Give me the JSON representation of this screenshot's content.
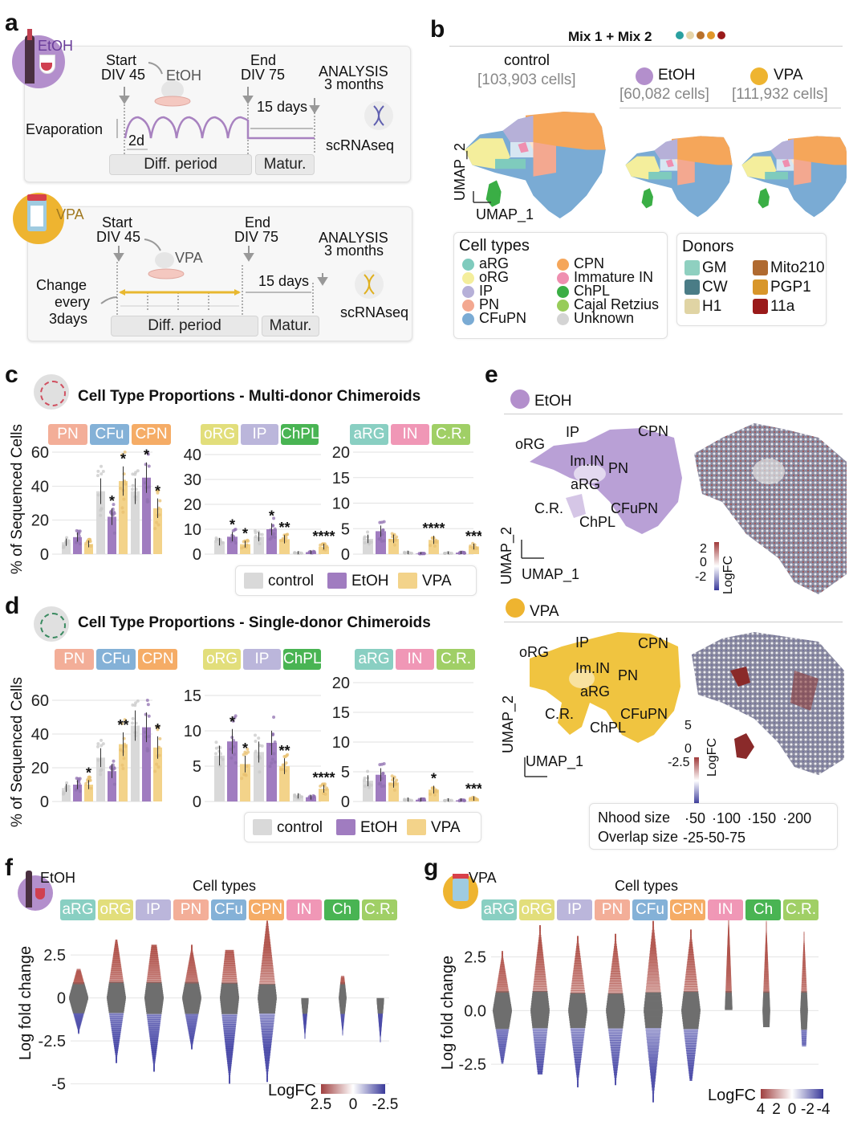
{
  "panels": {
    "a": {
      "label": "a",
      "etoh": {
        "icon_label": "EtOH",
        "start": "Start",
        "start_div": "DIV 45",
        "treatment": "EtOH",
        "end": "End",
        "end_div": "DIV 75",
        "analysis": "ANALYSIS",
        "analysis_time": "3 months",
        "mat_days": "15 days",
        "evaporation": "Evaporation",
        "interval": "2d",
        "seq": "scRNAseq",
        "diff_period": "Diff. period",
        "matur": "Matur.",
        "line_color": "#a882c0"
      },
      "vpa": {
        "icon_label": "VPA",
        "start": "Start",
        "start_div": "DIV 45",
        "treatment": "VPA",
        "end": "End",
        "end_div": "DIV 75",
        "analysis": "ANALYSIS",
        "analysis_time": "3 months",
        "mat_days": "15 days",
        "change1": "Change",
        "change2": "every",
        "change3": "3days",
        "seq": "scRNAseq",
        "diff_period": "Diff. period",
        "matur": "Matur.",
        "line_color": "#e8b830"
      }
    },
    "b": {
      "label": "b",
      "title": "Mix 1 + Mix 2",
      "mix_dots": [
        "#2aa0a0",
        "#e6d4a8",
        "#b8702a",
        "#e0962a",
        "#9a1a1a"
      ],
      "control_label": "control",
      "control_cells": "[103,903 cells]",
      "etoh_label": "EtOH",
      "etoh_cells": "[60,082 cells]",
      "vpa_label": "VPA",
      "vpa_cells": "[111,932 cells]",
      "umap_x": "UMAP_1",
      "umap_y": "UMAP_2",
      "cell_types_title": "Cell types",
      "cell_types": [
        {
          "name": "aRG",
          "color": "#7fcbbd"
        },
        {
          "name": "oRG",
          "color": "#f4ee9c"
        },
        {
          "name": "IP",
          "color": "#b6b0d8"
        },
        {
          "name": "PN",
          "color": "#f3a890"
        },
        {
          "name": "CFuPN",
          "color": "#7aabd4"
        },
        {
          "name": "CPN",
          "color": "#f5a65a"
        },
        {
          "name": "Immature IN",
          "color": "#ef8fb0"
        },
        {
          "name": "ChPL",
          "color": "#3aae45"
        },
        {
          "name": "Cajal Retzius",
          "color": "#98cc5a"
        },
        {
          "name": "Unknown",
          "color": "#d4d4d4"
        }
      ],
      "donors_title": "Donors",
      "donors": [
        {
          "name": "GM",
          "color": "#8fd0c0"
        },
        {
          "name": "CW",
          "color": "#4a7c86"
        },
        {
          "name": "H1",
          "color": "#e0d4a4"
        },
        {
          "name": "Mito210",
          "color": "#b06a30"
        },
        {
          "name": "PGP1",
          "color": "#d8962a"
        },
        {
          "name": "11a",
          "color": "#9a1a1a"
        }
      ]
    },
    "c": {
      "label": "c",
      "title": "Cell Type Proportions - Multi-donor Chimeroids",
      "ylabel": "% of Sequenced Cells",
      "legend": [
        "control",
        "EtOH",
        "VPA"
      ]
    },
    "d": {
      "label": "d",
      "title": "Cell Type Proportions - Single-donor Chimeroids",
      "ylabel": "% of Sequenced Cells",
      "legend": [
        "control",
        "EtOH",
        "VPA"
      ]
    },
    "e": {
      "label": "e",
      "etoh_label": "EtOH",
      "vpa_label": "VPA",
      "umap_x": "UMAP_1",
      "umap_y": "UMAP_2",
      "cluster_labels": [
        "IP",
        "CPN",
        "oRG",
        "Im.IN",
        "PN",
        "aRG",
        "C.R.",
        "CFuPN",
        "ChPL"
      ],
      "etoh_colorbar": {
        "title": "LogFC",
        "ticks": [
          "2",
          "0",
          "-2"
        ]
      },
      "vpa_colorbar": {
        "title": "LogFC",
        "ticks": [
          "5",
          "0",
          "-2.5"
        ]
      },
      "nhood_label": "Nhood size",
      "nhood_sizes": [
        "50",
        "100",
        "150",
        "200"
      ],
      "overlap_label": "Overlap size",
      "overlap_sizes": [
        "25",
        "50",
        "75"
      ]
    },
    "f": {
      "label": "f",
      "icon_label": "EtOH",
      "header": "Cell types",
      "colorbar_title": "LogFC",
      "colorbar_ticks": [
        "2.5",
        "0",
        "-2.5"
      ]
    },
    "g": {
      "label": "g",
      "icon_label": "VPA",
      "header": "Cell types",
      "colorbar_title": "LogFC",
      "colorbar_ticks": [
        "4",
        "2",
        "0",
        "-2",
        "-4"
      ]
    }
  },
  "colors": {
    "control": "#d9d9d9",
    "etoh": "#a07cc0",
    "vpa": "#f3d38a",
    "etoh_umap": "#b9a0d6",
    "vpa_umap": "#f0c440",
    "pos": "#b0524a",
    "neg": "#4a4aa8",
    "mid": "#6e6e6e"
  },
  "chart_data": [
    {
      "id": "c",
      "type": "bar",
      "title": "Cell Type Proportions - Multi-donor Chimeroids",
      "ylabel": "% of Sequenced Cells",
      "series_names": [
        "control",
        "EtOH",
        "VPA"
      ],
      "groups": [
        {
          "ylim": [
            0,
            60
          ],
          "yticks": [
            "0",
            "20",
            "40",
            "60"
          ],
          "categories": [
            {
              "name": "PN",
              "color": "#f3a890",
              "values": [
                7,
                10,
                6
              ],
              "sig": [
                "",
                "",
                ""
              ]
            },
            {
              "name": "CFu",
              "color": "#7aabd4",
              "values": [
                37,
                22,
                43
              ],
              "sig": [
                "",
                "*",
                "*"
              ]
            },
            {
              "name": "CPN",
              "color": "#f5a65a",
              "values": [
                37,
                45,
                27
              ],
              "sig": [
                "",
                "*",
                "*"
              ]
            }
          ]
        },
        {
          "ylim": [
            0,
            40
          ],
          "yticks": [
            "0",
            "10",
            "20",
            "30",
            "40"
          ],
          "categories": [
            {
              "name": "oRG",
              "color": "#e0dc70",
              "values": [
                5,
                7,
                4
              ],
              "sig": [
                "",
                "*",
                "*"
              ]
            },
            {
              "name": "IP",
              "color": "#b6b0d8",
              "values": [
                7,
                10,
                6
              ],
              "sig": [
                "",
                "*",
                "**"
              ]
            },
            {
              "name": "ChPL",
              "color": "#3aae45",
              "values": [
                0.5,
                0.8,
                3
              ],
              "sig": [
                "",
                "",
                "****"
              ]
            }
          ]
        },
        {
          "ylim": [
            0,
            20
          ],
          "yticks": [
            "0",
            "5",
            "10",
            "15",
            "20"
          ],
          "categories": [
            {
              "name": "aRG",
              "color": "#7fcbbd",
              "values": [
                3,
                4.5,
                3
              ],
              "sig": [
                "",
                "",
                ""
              ]
            },
            {
              "name": "IN",
              "color": "#ef8fb0",
              "values": [
                0.3,
                0.1,
                2.8
              ],
              "sig": [
                "",
                "",
                "****"
              ]
            },
            {
              "name": "C.R.",
              "color": "#98cc5a",
              "values": [
                0.2,
                0.3,
                1.5
              ],
              "sig": [
                "",
                "",
                "***"
              ]
            }
          ]
        }
      ]
    },
    {
      "id": "d",
      "type": "bar",
      "title": "Cell Type Proportions - Single-donor Chimeroids",
      "ylabel": "% of Sequenced Cells",
      "series_names": [
        "control",
        "EtOH",
        "VPA"
      ],
      "groups": [
        {
          "ylim": [
            0,
            60
          ],
          "yticks": [
            "0",
            "20",
            "40",
            "60"
          ],
          "categories": [
            {
              "name": "PN",
              "color": "#f3a890",
              "values": [
                8,
                10,
                10
              ],
              "sig": [
                "",
                "",
                "*"
              ]
            },
            {
              "name": "CFu",
              "color": "#7aabd4",
              "values": [
                26,
                18,
                34
              ],
              "sig": [
                "",
                "",
                "**"
              ]
            },
            {
              "name": "CPN",
              "color": "#f5a65a",
              "values": [
                45,
                44,
                32
              ],
              "sig": [
                "",
                "",
                "*"
              ]
            }
          ]
        },
        {
          "ylim": [
            0,
            15
          ],
          "yticks": [
            "0",
            "5",
            "10",
            "15"
          ],
          "categories": [
            {
              "name": "oRG",
              "color": "#e0dc70",
              "values": [
                6.5,
                8.5,
                5.3
              ],
              "sig": [
                "",
                "*",
                "*"
              ]
            },
            {
              "name": "IP",
              "color": "#b6b0d8",
              "values": [
                7,
                8.3,
                5
              ],
              "sig": [
                "",
                "",
                "**"
              ]
            },
            {
              "name": "ChPL",
              "color": "#3aae45",
              "values": [
                0.8,
                0.6,
                1.8
              ],
              "sig": [
                "",
                "",
                "****"
              ]
            }
          ]
        },
        {
          "ylim": [
            0,
            20
          ],
          "yticks": [
            "0",
            "5",
            "10",
            "15",
            "20"
          ],
          "categories": [
            {
              "name": "aRG",
              "color": "#7fcbbd",
              "values": [
                3.5,
                4.5,
                3.2
              ],
              "sig": [
                "",
                "",
                ""
              ]
            },
            {
              "name": "IN",
              "color": "#ef8fb0",
              "values": [
                0.3,
                0.3,
                2
              ],
              "sig": [
                "",
                "",
                "*"
              ]
            },
            {
              "name": "C.R.",
              "color": "#98cc5a",
              "values": [
                0.2,
                0.2,
                0.5
              ],
              "sig": [
                "",
                "",
                "***"
              ]
            }
          ]
        }
      ]
    },
    {
      "id": "f",
      "type": "scatter",
      "title": "EtOH",
      "ylabel": "Log fold change",
      "ylim": [
        -5.3,
        4.7
      ],
      "yticks": [
        "-5",
        "-2.5",
        "0",
        "2.5"
      ],
      "ytick_values": [
        -5,
        -2.5,
        0,
        2.5
      ],
      "categories": [
        {
          "name": "aRG",
          "color": "#7fcbbd",
          "min": -2,
          "max": 1.6,
          "n": 40
        },
        {
          "name": "oRG",
          "color": "#e0dc70",
          "min": -3.7,
          "max": 3.3,
          "n": 40
        },
        {
          "name": "IP",
          "color": "#b6b0d8",
          "min": -4.2,
          "max": 3.0,
          "n": 40
        },
        {
          "name": "PN",
          "color": "#f3a890",
          "min": -2.9,
          "max": 3.0,
          "n": 40
        },
        {
          "name": "CFu",
          "color": "#7aabd4",
          "min": -4.9,
          "max": 2.7,
          "n": 40
        },
        {
          "name": "CPN",
          "color": "#f5a65a",
          "min": -4.8,
          "max": 4.4,
          "n": 40
        },
        {
          "name": "IN",
          "color": "#ef8fb0",
          "min": -2.3,
          "max": -0.1,
          "n": 12
        },
        {
          "name": "Ch",
          "color": "#3aae45",
          "min": -2.1,
          "max": 1.2,
          "n": 20
        },
        {
          "name": "C.R.",
          "color": "#98cc5a",
          "min": -2.5,
          "max": -0.1,
          "n": 18
        }
      ]
    },
    {
      "id": "g",
      "type": "scatter",
      "title": "VPA",
      "ylabel": "Log fold change",
      "ylim": [
        -4.4,
        4.2
      ],
      "yticks": [
        "-2.5",
        "0.0",
        "2.5"
      ],
      "ytick_values": [
        -2.5,
        0,
        2.5
      ],
      "categories": [
        {
          "name": "aRG",
          "color": "#7fcbbd",
          "min": -2.4,
          "max": 2.7,
          "n": 40
        },
        {
          "name": "oRG",
          "color": "#e0dc70",
          "min": -2.9,
          "max": 3.9,
          "n": 40
        },
        {
          "name": "IP",
          "color": "#b6b0d8",
          "min": -3.5,
          "max": 3.4,
          "n": 40
        },
        {
          "name": "PN",
          "color": "#f3a890",
          "min": -3.4,
          "max": 3.5,
          "n": 40
        },
        {
          "name": "CFu",
          "color": "#7aabd4",
          "min": -4.2,
          "max": 4.1,
          "n": 40
        },
        {
          "name": "CPN",
          "color": "#f5a65a",
          "min": -3.2,
          "max": 3.7,
          "n": 40
        },
        {
          "name": "IN",
          "color": "#ef8fb0",
          "min": 0.1,
          "max": 4.5,
          "n": 30
        },
        {
          "name": "Ch",
          "color": "#3aae45",
          "min": -0.7,
          "max": 4.1,
          "n": 30
        },
        {
          "name": "C.R.",
          "color": "#98cc5a",
          "min": -1.6,
          "max": 3.6,
          "n": 30
        }
      ]
    }
  ]
}
